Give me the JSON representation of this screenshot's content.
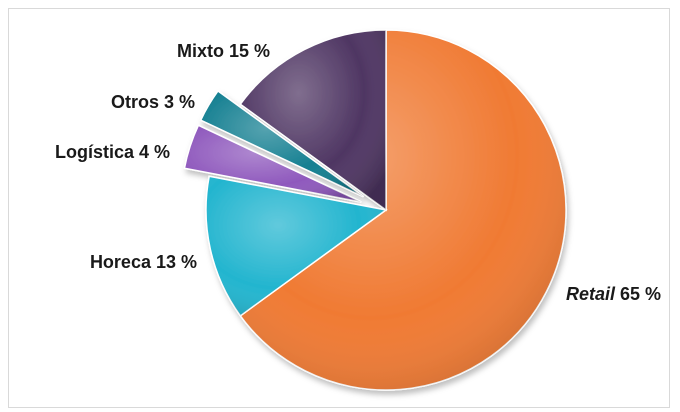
{
  "chart_data": {
    "type": "pie",
    "title": "",
    "slices": [
      {
        "name": "Retail",
        "pct_text": "65 %",
        "value": 65,
        "color": "#f07a33",
        "italic": true
      },
      {
        "name": "Horeca",
        "pct_text": "13 %",
        "value": 13,
        "color": "#23b5cf"
      },
      {
        "name": "Logística",
        "pct_text": "4 %",
        "value": 4,
        "color": "#8f59bd",
        "exploded": true
      },
      {
        "name": "Otros",
        "pct_text": "3 %",
        "value": 3,
        "color": "#147f91",
        "exploded": true
      },
      {
        "name": "Mixto",
        "pct_text": "15 %",
        "value": 15,
        "color": "#4f3663"
      }
    ]
  }
}
